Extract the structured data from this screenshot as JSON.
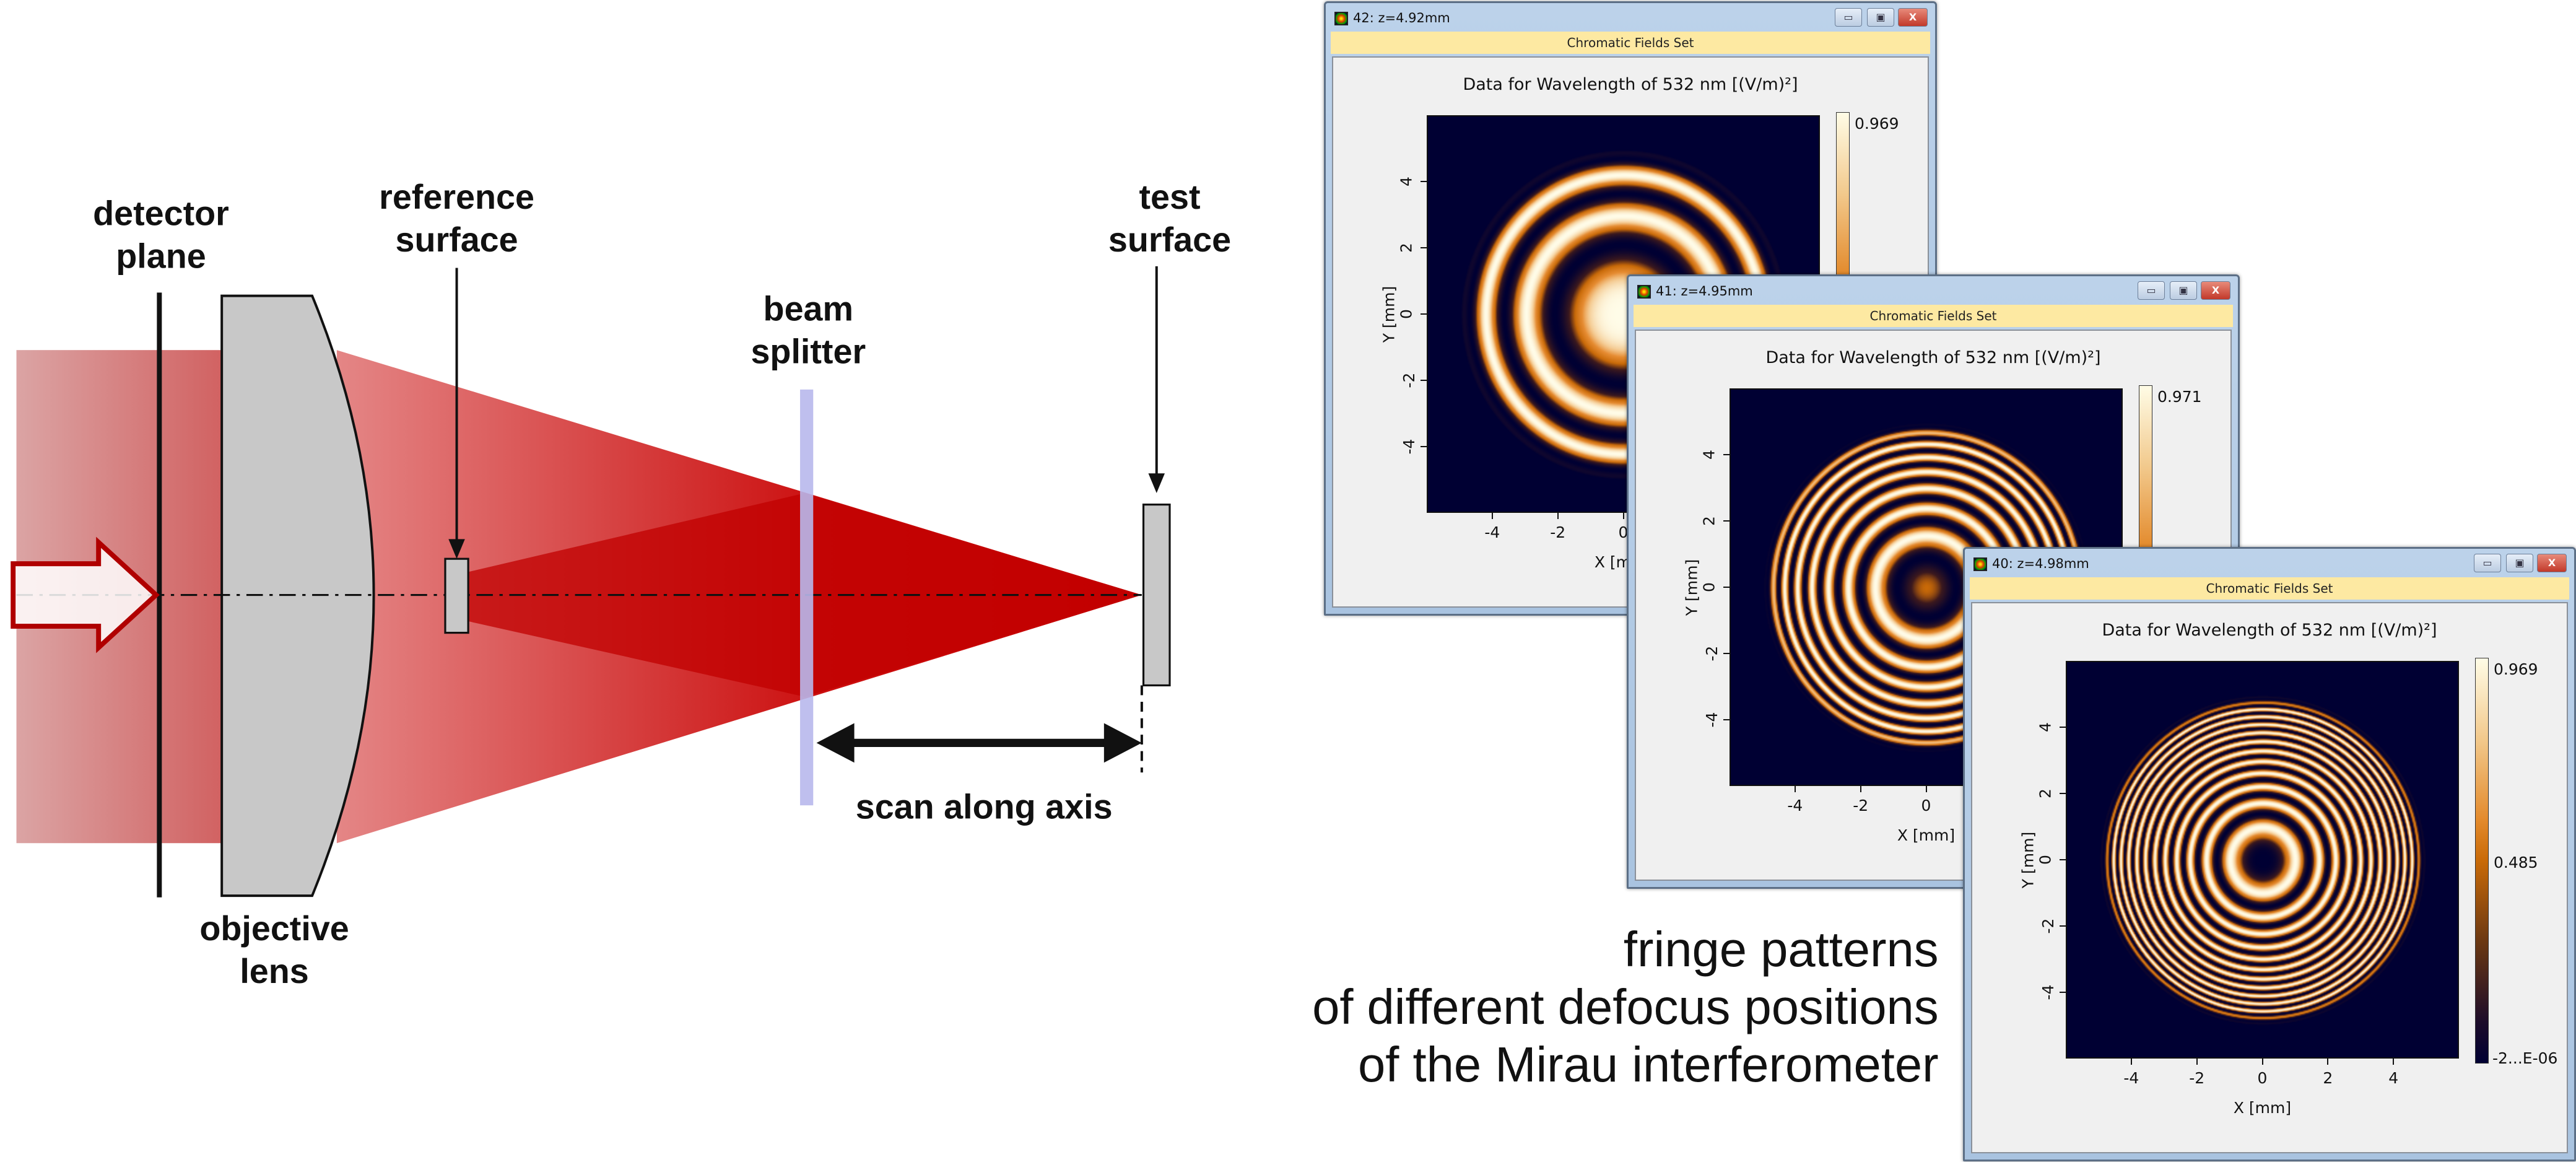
{
  "diagram": {
    "labels": {
      "detector_plane": [
        "detector",
        "plane"
      ],
      "reference_surface": [
        "reference",
        "surface"
      ],
      "beam_splitter": [
        "beam",
        "splitter"
      ],
      "test_surface": [
        "test",
        "surface"
      ],
      "objective_lens": [
        "objective",
        "lens"
      ],
      "scan": "scan along axis"
    },
    "caption": [
      "fringe patterns",
      "of different defocus positions",
      "of the Mirau interferometer"
    ],
    "colors": {
      "beam": "#cc0000",
      "incoming_beam": "#dba4a4",
      "lens": "#c8c8c8",
      "beam_splitter": "#b8b8ec",
      "arrow_outline": "#b00000"
    }
  },
  "windows": [
    {
      "title": "42: z=4.92mm",
      "header": "Chromatic Fields Set",
      "plot_title": "Data for Wavelength of 532 nm  [(V/m)²]",
      "colorbar": {
        "max": "0.969"
      },
      "xlabel": "X [mm]",
      "ylabel": "Y [mm]",
      "ticks": [
        "-4",
        "-2",
        "0",
        "2",
        "4"
      ]
    },
    {
      "title": "41: z=4.95mm",
      "header": "Chromatic Fields Set",
      "plot_title": "Data for Wavelength of 532 nm  [(V/m)²]",
      "colorbar": {
        "max": "0.971"
      },
      "xlabel": "X [mm]",
      "ylabel": "Y [mm]",
      "ticks": [
        "-4",
        "-2",
        "0",
        "2",
        "4"
      ]
    },
    {
      "title": "40: z=4.98mm",
      "header": "Chromatic Fields Set",
      "plot_title": "Data for Wavelength of 532 nm  [(V/m)²]",
      "colorbar": {
        "max": "0.969",
        "mid": "0.485",
        "min": "-2...E-06"
      },
      "xlabel": "X [mm]",
      "ylabel": "Y [mm]",
      "ticks": [
        "-4",
        "-2",
        "0",
        "2",
        "4"
      ]
    }
  ],
  "window_buttons": {
    "minimize": "▭",
    "maximize": "▣",
    "close": "X"
  }
}
